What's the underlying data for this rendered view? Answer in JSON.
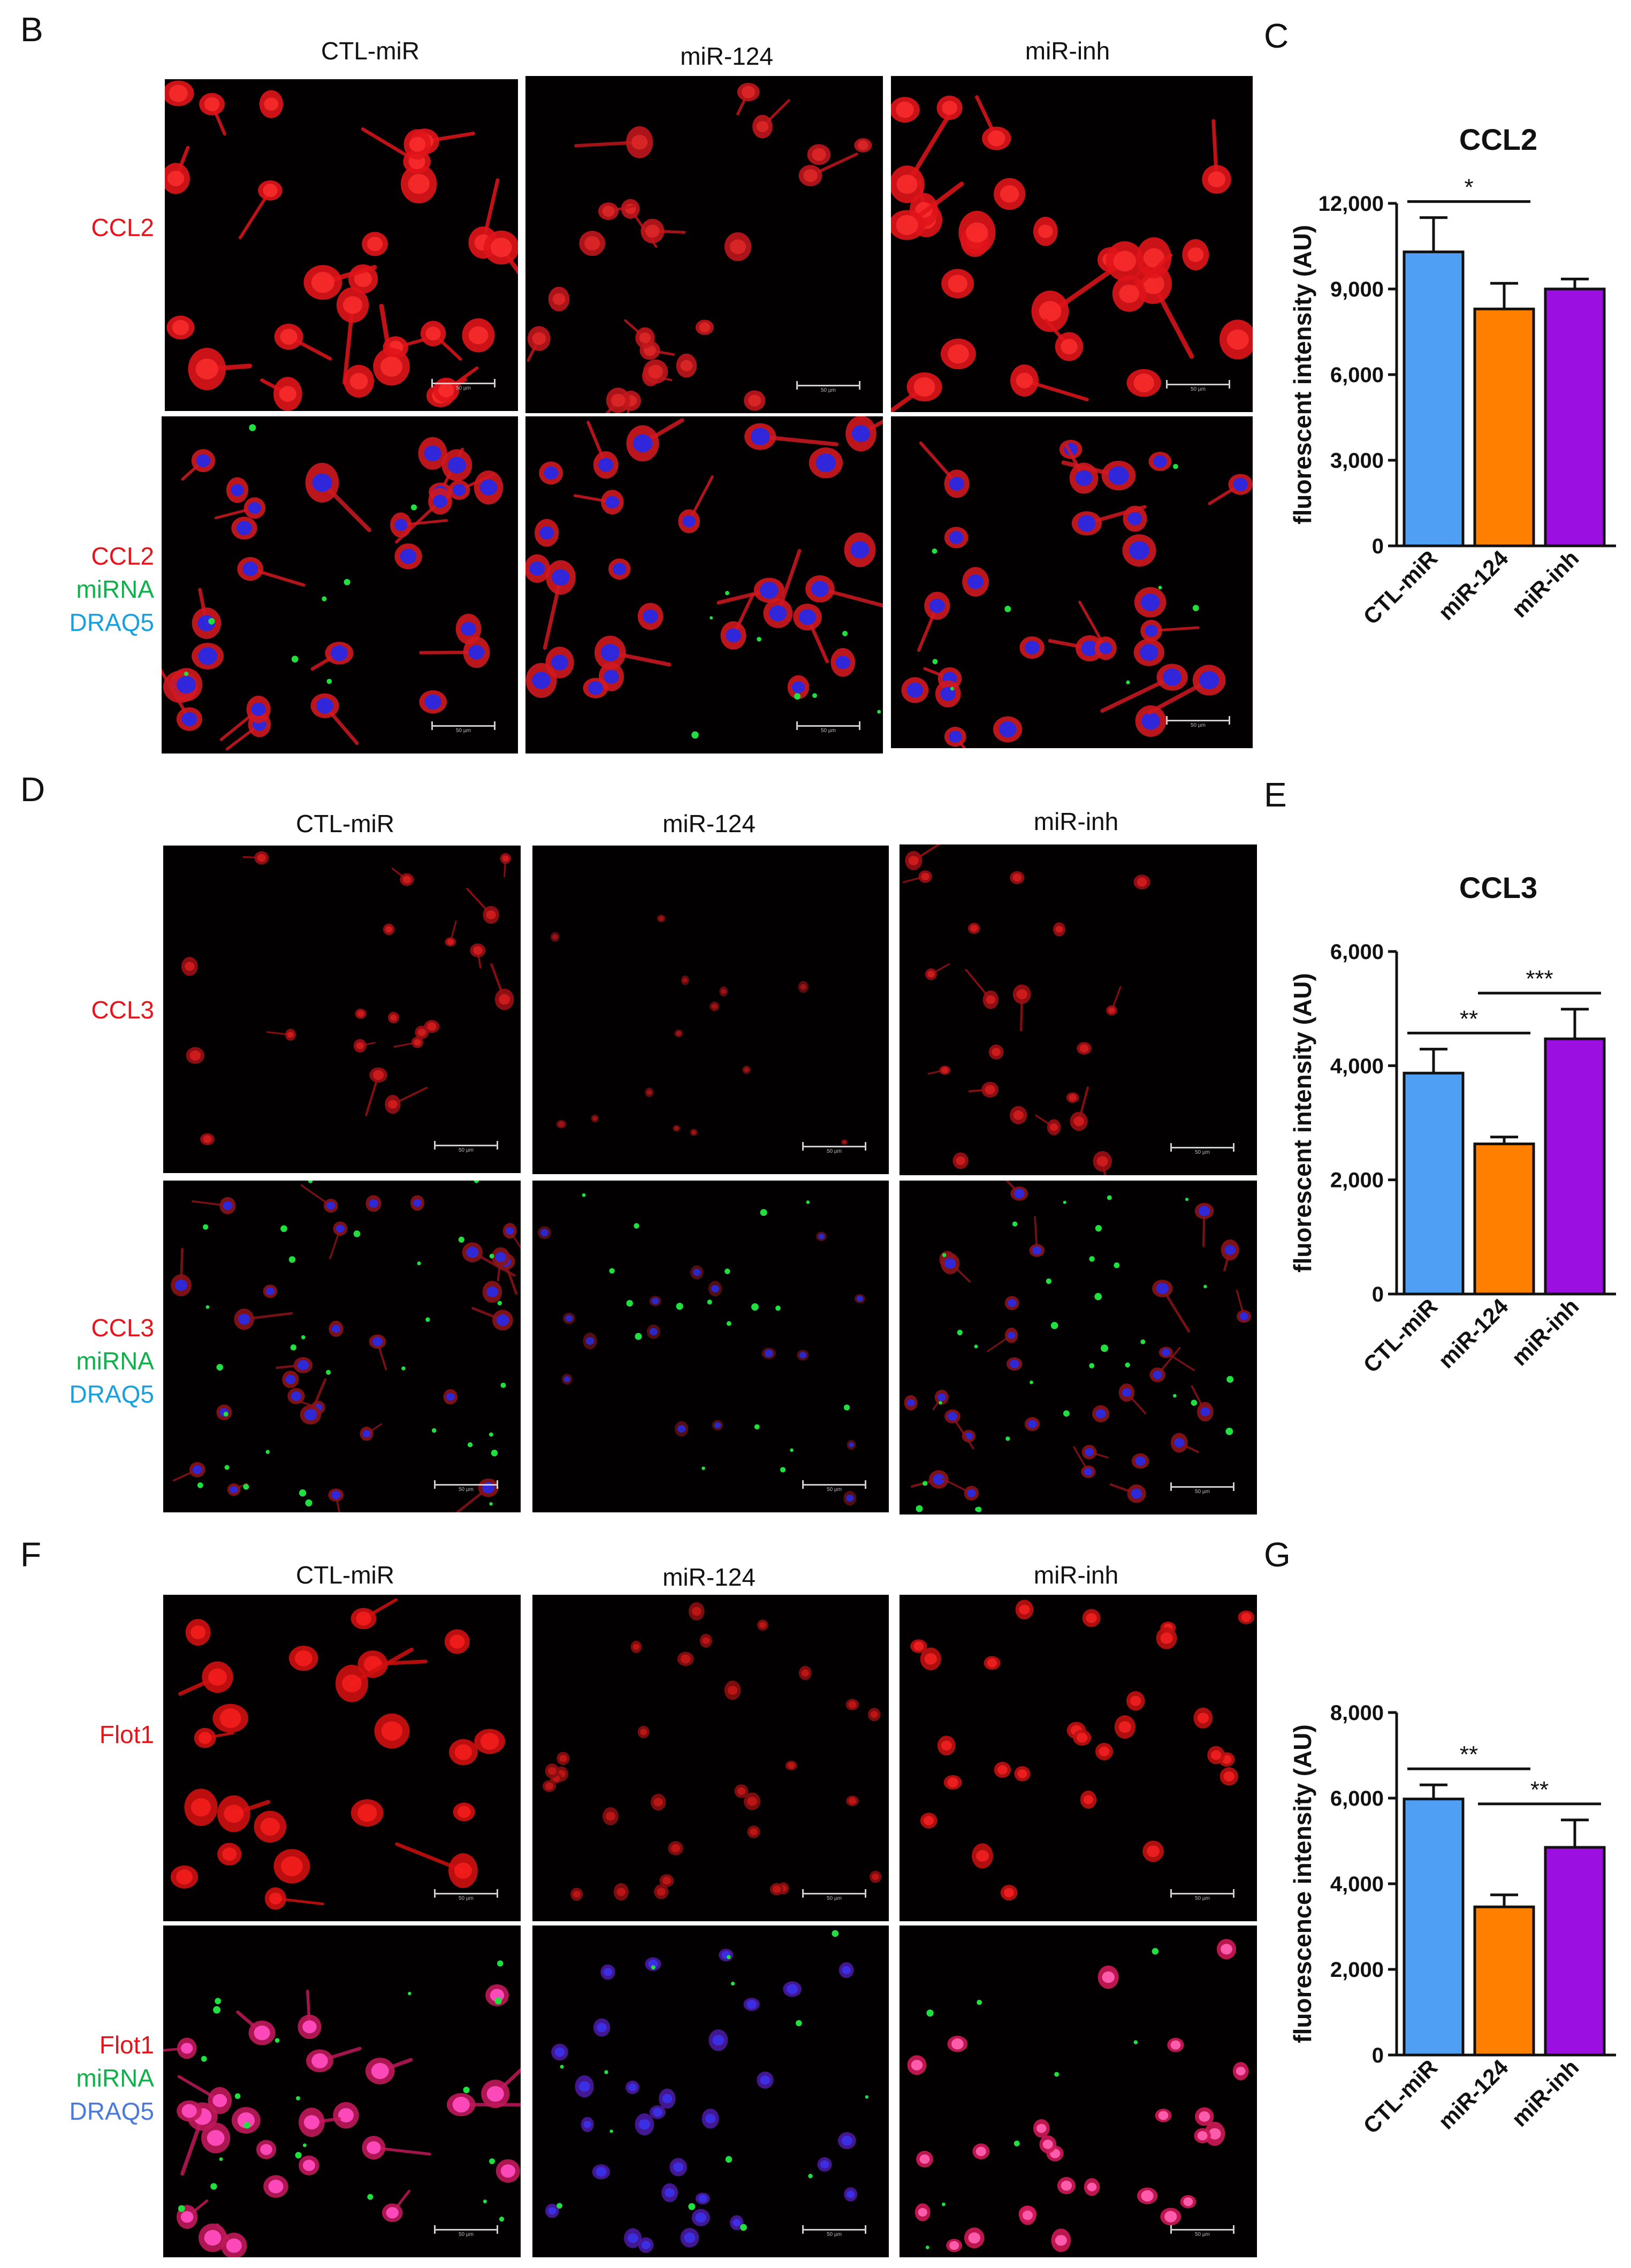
{
  "colors": {
    "ctl": "#4f9ff5",
    "mir124": "#ff8000",
    "inh": "#9b0fe0",
    "red": "#e8141c",
    "green": "#12b04c",
    "blue": "#1aa0dc",
    "blue_f": "#4b7ad8"
  },
  "panels": [
    {
      "letter": "B",
      "columns": [
        "CTL-miR",
        "miR-124",
        "miR-inh"
      ],
      "row1_label": [
        "CCL2"
      ],
      "row2_label": [
        "CCL2",
        "miRNA",
        "DRAQ5"
      ],
      "scale_text": "50 µm"
    },
    {
      "letter": "D",
      "columns": [
        "CTL-miR",
        "miR-124",
        "miR-inh"
      ],
      "row1_label": [
        "CCL3"
      ],
      "row2_label": [
        "CCL3",
        "miRNA",
        "DRAQ5"
      ],
      "scale_text": "50 µm"
    },
    {
      "letter": "F",
      "columns": [
        "CTL-miR",
        "miR-124",
        "miR-inh"
      ],
      "row1_label": [
        "Flot1"
      ],
      "row2_label": [
        "Flot1",
        "miRNA",
        "DRAQ5"
      ],
      "scale_text": "50 µm"
    }
  ],
  "chart_data": [
    {
      "letter": "C",
      "type": "bar",
      "title": "CCL2",
      "ylabel": "fluorescent intensity (AU)",
      "categories": [
        "CTL-miR",
        "miR-124",
        "miR-inh"
      ],
      "values": [
        10300,
        8300,
        9000
      ],
      "errors": [
        1200,
        900,
        350
      ],
      "ylim": [
        0,
        12000
      ],
      "yticks": [
        "0",
        "3,000",
        "6,000",
        "9,000",
        "12,000"
      ],
      "ytick_values": [
        0,
        3000,
        6000,
        9000,
        12000
      ],
      "significance": [
        {
          "from": 0,
          "to": 1,
          "label": "*"
        }
      ]
    },
    {
      "letter": "E",
      "type": "bar",
      "title": "CCL3",
      "ylabel": "fluorescent intensity (AU)",
      "categories": [
        "CTL-miR",
        "miR-124",
        "miR-inh"
      ],
      "values": [
        3870,
        2630,
        4470
      ],
      "errors": [
        420,
        120,
        520
      ],
      "ylim": [
        0,
        6000
      ],
      "yticks": [
        "0",
        "2,000",
        "4,000",
        "6,000"
      ],
      "ytick_values": [
        0,
        2000,
        4000,
        6000
      ],
      "significance": [
        {
          "from": 0,
          "to": 1,
          "label": "**"
        },
        {
          "from": 1,
          "to": 2,
          "label": "***"
        }
      ]
    },
    {
      "letter": "G",
      "type": "bar",
      "title": "",
      "ylabel": "fluorescence intensity (AU)",
      "categories": [
        "CTL-miR",
        "miR-124",
        "miR-inh"
      ],
      "values": [
        5980,
        3460,
        4850
      ],
      "errors": [
        330,
        280,
        640
      ],
      "ylim": [
        0,
        8000
      ],
      "yticks": [
        "0",
        "2,000",
        "4,000",
        "6,000",
        "8,000"
      ],
      "ytick_values": [
        0,
        2000,
        4000,
        6000,
        8000
      ],
      "significance": [
        {
          "from": 0,
          "to": 1,
          "label": "**"
        },
        {
          "from": 1,
          "to": 2,
          "label": "**"
        }
      ]
    }
  ]
}
